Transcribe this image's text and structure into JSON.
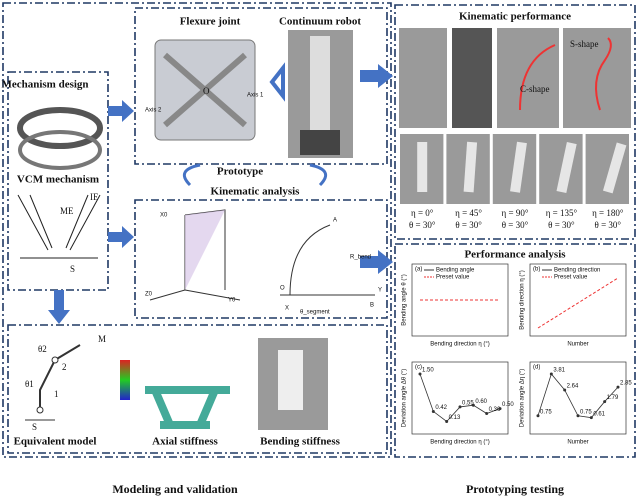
{
  "sections": {
    "modeling": "Modeling and validation",
    "prototyping": "Prototyping testing"
  },
  "mechanism_design": {
    "title": "Mechanism design",
    "vcm": "VCM mechanism",
    "labels": [
      "IE",
      "ME",
      "S"
    ]
  },
  "flexure_joint": {
    "title": "Flexure joint",
    "axis2": "Axis 2",
    "axis1": "Axis 1",
    "origin": "O"
  },
  "continuum_robot": {
    "title": "Continuum robot"
  },
  "prototype": "Prototype",
  "kinematic_analysis": {
    "title": "Kinematic analysis",
    "labels": [
      "X0",
      "Y0",
      "Z0",
      "O",
      "A",
      "B",
      "X",
      "Y",
      "R_bend",
      "θ_segment"
    ]
  },
  "equivalent_model": {
    "title": "Equivalent model",
    "labels": [
      "θ1",
      "θ2",
      "M",
      "1",
      "2",
      "S"
    ]
  },
  "axial_stiffness": {
    "title": "Axial stiffness"
  },
  "bending_stiffness": {
    "title": "Bending stiffness"
  },
  "kinematic_performance": {
    "title": "Kinematic performance",
    "shapes": [
      "C-shape",
      "S-shape"
    ],
    "configs": [
      {
        "eta": "η = 0°",
        "theta": "θ = 30°"
      },
      {
        "eta": "η = 45°",
        "theta": "θ = 30°"
      },
      {
        "eta": "η = 90°",
        "theta": "θ = 30°"
      },
      {
        "eta": "η = 135°",
        "theta": "θ = 30°"
      },
      {
        "eta": "η = 180°",
        "theta": "θ = 30°"
      }
    ]
  },
  "performance_analysis": {
    "title": "Performance analysis",
    "plots": [
      {
        "panel": "(a)",
        "ylabel": "Bending angle θ (°)",
        "xlabel": "Bending direction η (°)",
        "legend": [
          "Bending angle",
          "Preset value"
        ]
      },
      {
        "panel": "(b)",
        "ylabel": "Bending direction η (°)",
        "xlabel": "Number",
        "legend": [
          "Bending direction",
          "Preset value"
        ]
      },
      {
        "panel": "(c)",
        "ylabel": "Deviation angle Δθ (°)",
        "xlabel": "Bending direction η (°)",
        "points": [
          "1.50",
          "0.42",
          "0.13",
          "0.55",
          "0.60",
          "0.36",
          "0.50"
        ]
      },
      {
        "panel": "(d)",
        "ylabel": "Deviation angle Δη (°)",
        "xlabel": "Number",
        "points": [
          "0.75",
          "3.81",
          "2.64",
          "0.75",
          "0.61",
          "1.79",
          "2.85"
        ]
      }
    ]
  }
}
